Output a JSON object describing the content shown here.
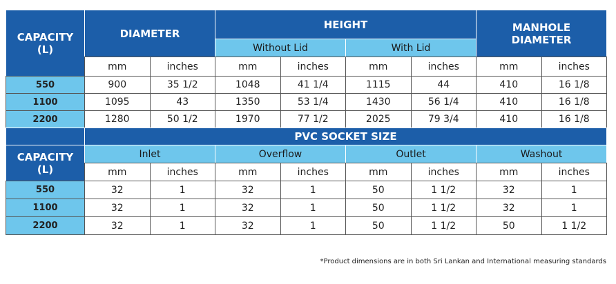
{
  "table1": {
    "capacity": "CAPACITY (L)",
    "diameter": "DIAMETER",
    "height": "HEIGHT",
    "without_lid": "Without Lid",
    "with_lid": "With Lid",
    "manhole": "MANHOLE DIAMETER",
    "units": [
      "mm",
      "inches",
      "mm",
      "inches",
      "mm",
      "inches",
      "mm",
      "inches"
    ],
    "rows": [
      [
        "550",
        "900",
        "35 1/2",
        "1048",
        "41 1/4",
        "1115",
        "44",
        "410",
        "16 1/8"
      ],
      [
        "1100",
        "1095",
        "43",
        "1350",
        "53 1/4",
        "1430",
        "56 1/4",
        "410",
        "16 1/8"
      ],
      [
        "2200",
        "1280",
        "50 1/2",
        "1970",
        "77 1/2",
        "2025",
        "79 3/4",
        "410",
        "16 1/8"
      ]
    ]
  },
  "table2": {
    "title": "PVC SOCKET SIZE",
    "capacity": "CAPACITY (L)",
    "groups": [
      "Inlet",
      "Overflow",
      "Outlet",
      "Washout"
    ],
    "units": [
      "mm",
      "inches",
      "mm",
      "inches",
      "mm",
      "inches",
      "mm",
      "inches"
    ],
    "rows": [
      [
        "550",
        "32",
        "1",
        "32",
        "1",
        "50",
        "1 1/2",
        "32",
        "1"
      ],
      [
        "1100",
        "32",
        "1",
        "32",
        "1",
        "50",
        "1 1/2",
        "32",
        "1"
      ],
      [
        "2200",
        "32",
        "1",
        "32",
        "1",
        "50",
        "1 1/2",
        "50",
        "1 1/2"
      ]
    ]
  },
  "footnote": "*Product dimensions are in both Sri Lankan and International measuring standards"
}
